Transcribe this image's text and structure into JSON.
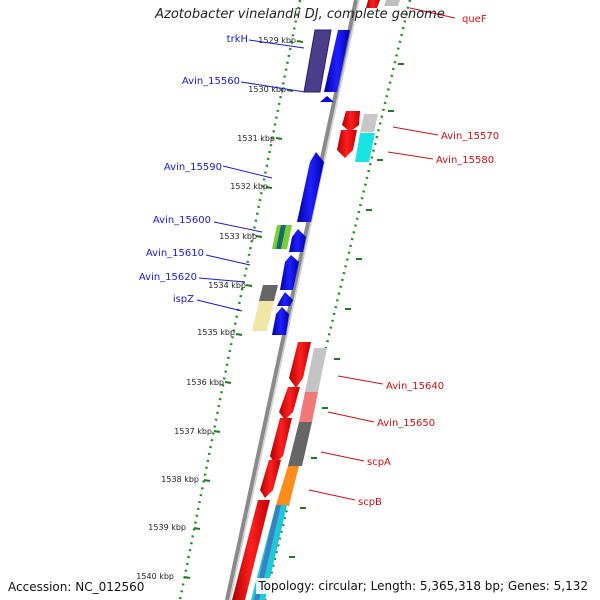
{
  "title": "Azotobacter vinelandii DJ, complete genome",
  "footer": {
    "accession": "Accession: NC_012560",
    "topology": "Topology: circular; Length: 5,365,318 bp; Genes: 5,132"
  },
  "ticks": [
    "1529 kbp",
    "1530 kbp",
    "1531 kbp",
    "1532 kbp",
    "1533 kbp",
    "1534 kbp",
    "1535 kbp",
    "1536 kbp",
    "1537 kbp",
    "1538 kbp",
    "1539 kbp",
    "1540 kbp"
  ],
  "labels_left": [
    "trkH",
    "Avin_15560",
    "Avin_15590",
    "Avin_15600",
    "Avin_15610",
    "Avin_15620",
    "ispZ"
  ],
  "labels_right": [
    "queF",
    "Avin_15570",
    "Avin_15580",
    "Avin_15640",
    "Avin_15650",
    "scpA",
    "scpB"
  ],
  "colors": {
    "forward_strand": "#0000ee",
    "reverse_strand": "#ee0000",
    "ruler_dots": "#2a8a2a",
    "backbone": "#888888"
  }
}
